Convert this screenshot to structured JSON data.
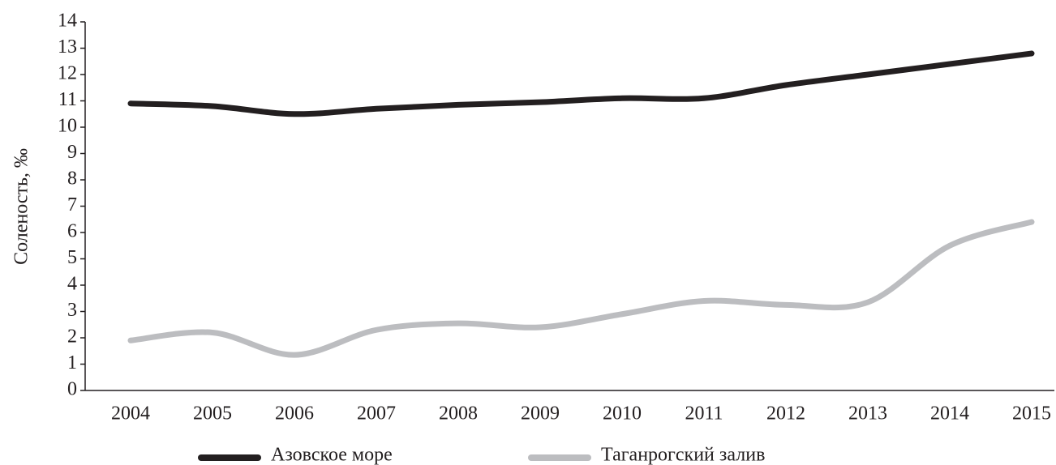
{
  "chart_data": {
    "type": "line",
    "y_label": "Соленость, ‰",
    "categories": [
      "2004",
      "2005",
      "2006",
      "2007",
      "2008",
      "2009",
      "2010",
      "2011",
      "2012",
      "2013",
      "2014",
      "2015"
    ],
    "series": [
      {
        "name": "Азовское море",
        "color": "#231f20",
        "values": [
          10.9,
          10.8,
          10.5,
          10.7,
          10.85,
          10.95,
          11.1,
          11.1,
          11.6,
          12.0,
          12.4,
          12.8
        ]
      },
      {
        "name": "Таганрогский залив",
        "color": "#bcbdc0",
        "values": [
          1.9,
          2.2,
          1.35,
          2.3,
          2.55,
          2.4,
          2.9,
          3.4,
          3.25,
          3.35,
          5.5,
          6.4
        ]
      }
    ],
    "ylim": [
      0,
      14
    ],
    "yticks": [
      0,
      1,
      2,
      3,
      4,
      5,
      6,
      7,
      8,
      9,
      10,
      11,
      12,
      13,
      14
    ],
    "grid": false,
    "legend": "bottom"
  }
}
